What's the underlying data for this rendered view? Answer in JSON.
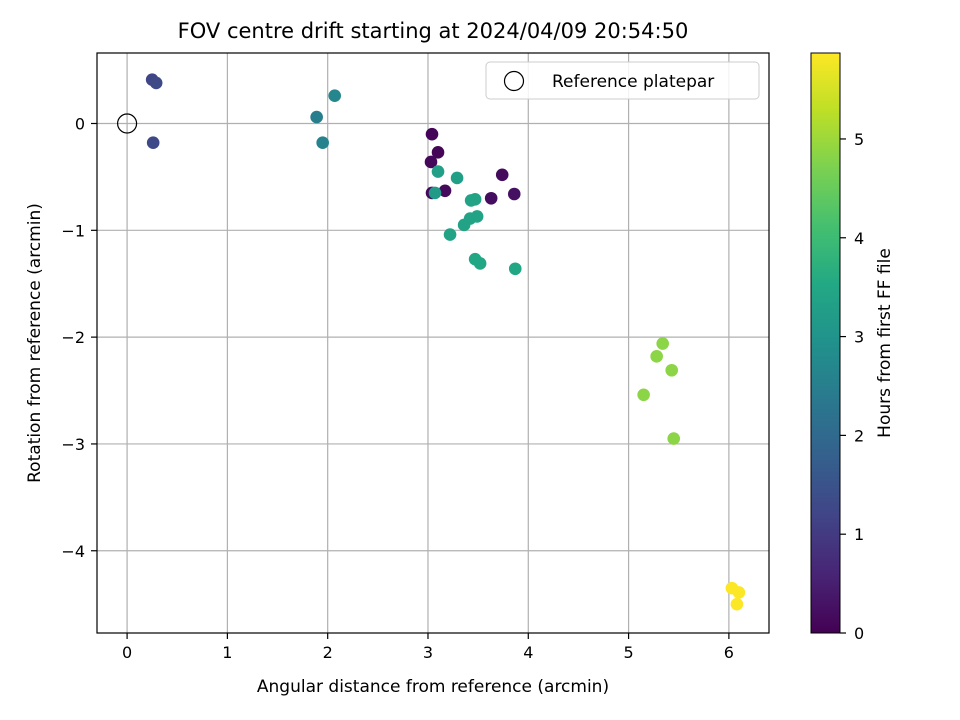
{
  "chart_data": {
    "type": "scatter",
    "title": "FOV centre drift starting at 2024/04/09 20:54:50",
    "xlabel": "Angular distance from reference (arcmin)",
    "ylabel": "Rotation from reference (arcmin)",
    "xlim": [
      -0.3,
      6.4
    ],
    "ylim": [
      -4.77,
      0.66
    ],
    "xticks": [
      0,
      1,
      2,
      3,
      4,
      5,
      6
    ],
    "yticks": [
      0,
      -1,
      -2,
      -3,
      -4
    ],
    "grid": true,
    "colormap": "viridis",
    "colorbar": {
      "label": "Hours from first FF file",
      "range": [
        0,
        5.87
      ],
      "ticks": [
        0,
        1,
        2,
        3,
        4,
        5
      ]
    },
    "legend": {
      "placement": "top-right",
      "entries": [
        "Reference platepar"
      ]
    },
    "reference_point": {
      "x": 0,
      "y": 0
    },
    "series": [
      {
        "points": [
          {
            "x": 3.04,
            "y": -0.1,
            "c": 0.05
          },
          {
            "x": 3.1,
            "y": -0.27,
            "c": 0.08
          },
          {
            "x": 3.03,
            "y": -0.36,
            "c": 0.1
          },
          {
            "x": 3.04,
            "y": -0.65,
            "c": 0.12
          },
          {
            "x": 3.17,
            "y": -0.63,
            "c": 0.15
          },
          {
            "x": 3.74,
            "y": -0.48,
            "c": 0.18
          },
          {
            "x": 3.63,
            "y": -0.7,
            "c": 0.2
          },
          {
            "x": 3.86,
            "y": -0.66,
            "c": 0.25
          },
          {
            "x": 0.25,
            "y": 0.41,
            "c": 1.2
          },
          {
            "x": 0.29,
            "y": 0.38,
            "c": 1.3
          },
          {
            "x": 0.26,
            "y": -0.18,
            "c": 1.3
          },
          {
            "x": 2.07,
            "y": 0.26,
            "c": 2.7
          },
          {
            "x": 1.89,
            "y": 0.06,
            "c": 2.5
          },
          {
            "x": 1.95,
            "y": -0.18,
            "c": 2.6
          },
          {
            "x": 3.1,
            "y": -0.45,
            "c": 3.3
          },
          {
            "x": 3.29,
            "y": -0.51,
            "c": 3.3
          },
          {
            "x": 3.07,
            "y": -0.65,
            "c": 3.2
          },
          {
            "x": 3.43,
            "y": -0.72,
            "c": 3.4
          },
          {
            "x": 3.47,
            "y": -0.71,
            "c": 3.4
          },
          {
            "x": 3.42,
            "y": -0.89,
            "c": 3.4
          },
          {
            "x": 3.36,
            "y": -0.95,
            "c": 3.4
          },
          {
            "x": 3.49,
            "y": -0.87,
            "c": 3.4
          },
          {
            "x": 3.22,
            "y": -1.04,
            "c": 3.4
          },
          {
            "x": 3.47,
            "y": -1.27,
            "c": 3.5
          },
          {
            "x": 3.52,
            "y": -1.31,
            "c": 3.5
          },
          {
            "x": 3.87,
            "y": -1.36,
            "c": 3.5
          },
          {
            "x": 5.34,
            "y": -2.06,
            "c": 4.85
          },
          {
            "x": 5.28,
            "y": -2.18,
            "c": 4.85
          },
          {
            "x": 5.43,
            "y": -2.31,
            "c": 4.85
          },
          {
            "x": 5.15,
            "y": -2.54,
            "c": 4.85
          },
          {
            "x": 5.45,
            "y": -2.95,
            "c": 4.85
          },
          {
            "x": 6.03,
            "y": -4.35,
            "c": 5.85
          },
          {
            "x": 6.1,
            "y": -4.39,
            "c": 5.85
          },
          {
            "x": 6.08,
            "y": -4.5,
            "c": 5.85
          }
        ]
      }
    ]
  }
}
